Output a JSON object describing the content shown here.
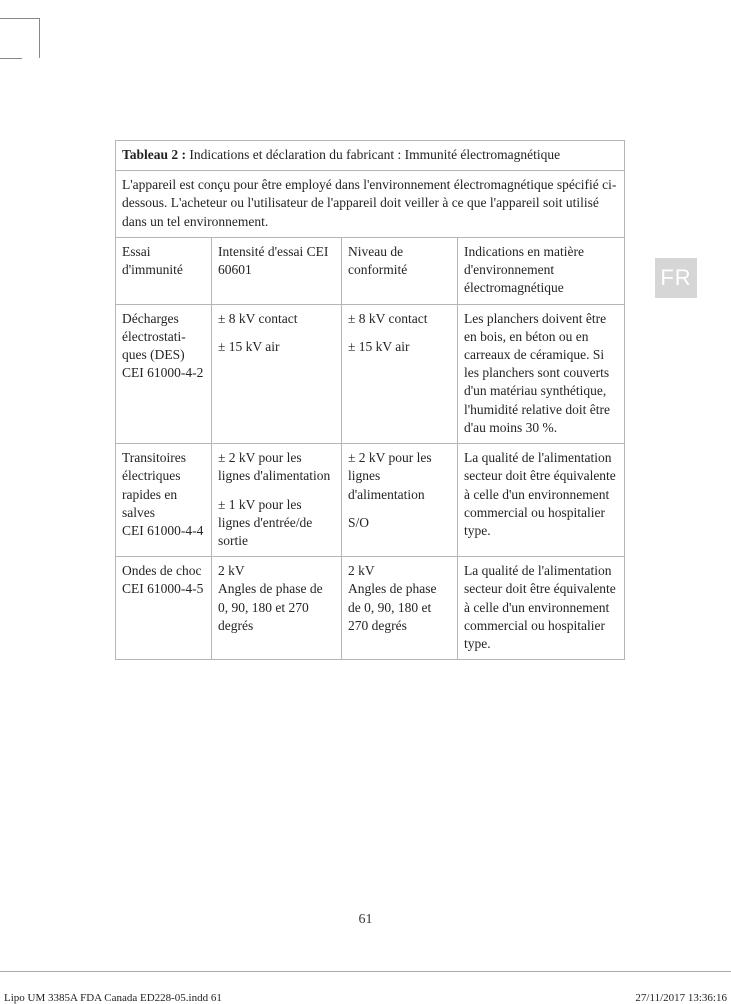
{
  "lang_tab": "FR",
  "page_number": "61",
  "footer": {
    "left": "Lipo UM 3385A FDA Canada ED228-05.indd   61",
    "right": "27/11/2017   13:36:16"
  },
  "table": {
    "title_bold": "Tableau 2 :",
    "title_rest": " Indications et déclaration du fabricant : Immunité électromagnétique",
    "intro": "L'appareil est conçu pour être employé dans l'environnement électromagnétique spécifié ci-dessous. L'acheteur ou l'utilisateur de l'appareil doit veiller à ce que l'appareil soit utilisé dans un tel environnement.",
    "headers": {
      "c1": "Essai d'immunité",
      "c2": "Intensité d'essai CEI 60601",
      "c3": "Niveau de conformité",
      "c4": "Indications en matière d'environnement électromagnétique"
    },
    "rows": [
      {
        "c1": "Décharges électrostati-ques (DES)\nCEI 61000-4-2",
        "c2": "± 8 kV contact\n\n± 15 kV air",
        "c3": "± 8 kV contact\n\n± 15 kV air",
        "c4": "Les planchers doivent être en bois, en béton ou en carreaux de céramique. Si les planchers sont couverts d'un matériau synthétique, l'humidité relative doit être d'au moins 30 %."
      },
      {
        "c1": "Transitoires électriques rapides en salves\nCEI 61000-4-4",
        "c2": "± 2 kV pour les lignes d'alimentation\n\n± 1 kV pour les lignes d'entrée/de sortie",
        "c3": "± 2 kV pour les lignes d'alimentation\n\nS/O",
        "c4": "La qualité de l'alimentation secteur doit être équivalente à celle d'un environnement commercial ou hospitalier type."
      },
      {
        "c1": "Ondes de choc\nCEI 61000-4-5",
        "c2": "2 kV\nAngles de phase de 0, 90, 180 et 270 degrés",
        "c3": "2 kV\nAngles de phase de 0, 90, 180 et 270 degrés",
        "c4": "La qualité de l'alimentation secteur doit être équivalente à celle d'un environnement commercial ou hospitalier type."
      }
    ]
  }
}
